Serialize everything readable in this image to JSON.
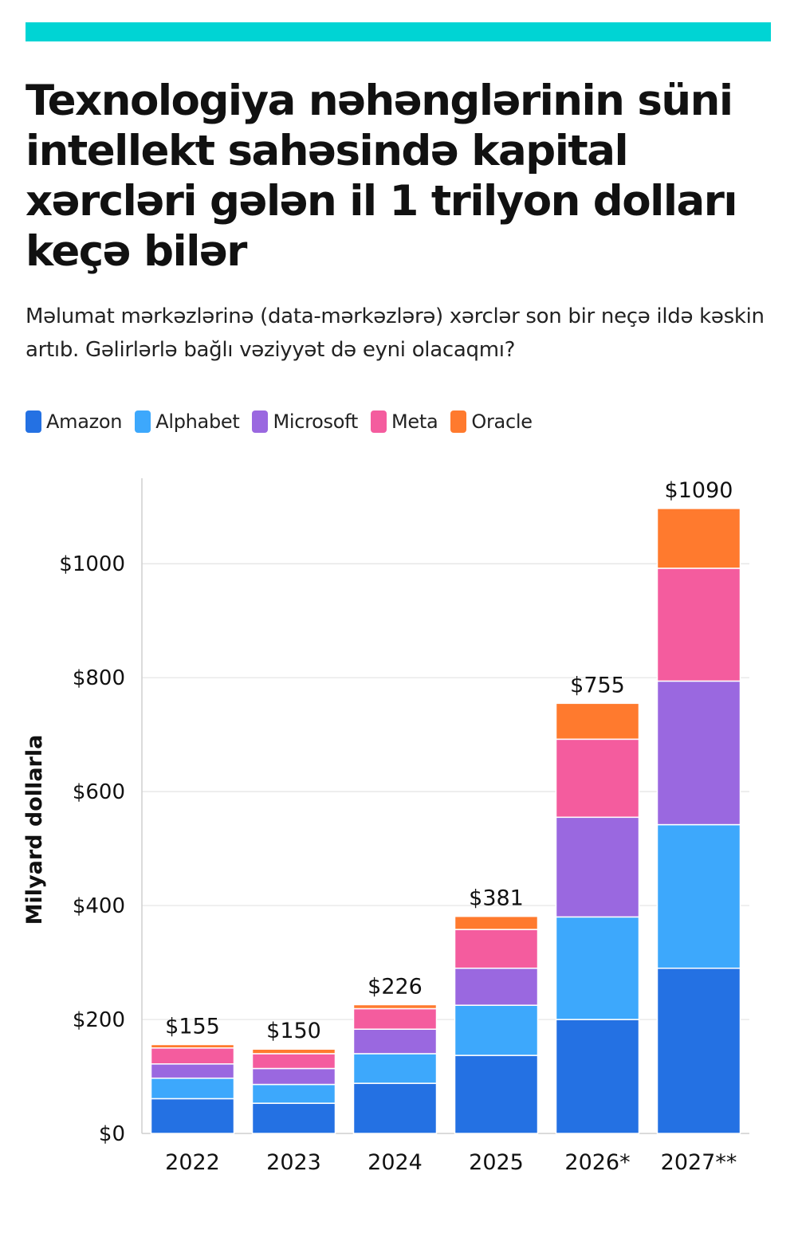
{
  "header": {
    "title": "Texnologiya nəhənglərinin süni intellekt sahəsində kapital xərcləri gələn il 1 trilyon dolları keçə bilər",
    "subtitle": "Məlumat mərkəzlərinə (data-mərkəzlərə) xərclər son bir neçə ildə kəskin artıb. Gəlirlərlə bağlı vəziyyət də eyni olacaqmı?"
  },
  "colors": {
    "accent_bar": "#00D4D4"
  },
  "chart_data": {
    "type": "bar",
    "stacked": true,
    "title": "Texnologiya nəhənglərinin süni intellekt sahəsində kapital xərcləri gələn il 1 trilyon dolları keçə bilər",
    "ylabel": "Milyard dollarla",
    "xlabel": "",
    "ylim": [
      0,
      1150
    ],
    "yticks": [
      0,
      200,
      400,
      600,
      800,
      1000
    ],
    "ytick_labels": [
      "$0",
      "$200",
      "$400",
      "$600",
      "$800",
      "$1000"
    ],
    "grid": true,
    "legend_position": "top-left",
    "categories": [
      "2022",
      "2023",
      "2024",
      "2025",
      "2026*",
      "2027**"
    ],
    "totals": [
      155,
      150,
      226,
      381,
      755,
      1090
    ],
    "total_labels": [
      "$155",
      "$150",
      "$226",
      "$381",
      "$755",
      "$1090"
    ],
    "series": [
      {
        "name": "Amazon",
        "color": "#2471E3",
        "values": [
          61,
          53,
          88,
          137,
          200,
          290
        ]
      },
      {
        "name": "Alphabet",
        "color": "#3DA8FC",
        "values": [
          36,
          33,
          52,
          88,
          180,
          252
        ]
      },
      {
        "name": "Microsoft",
        "color": "#9A68E0",
        "values": [
          25,
          28,
          43,
          65,
          175,
          252
        ]
      },
      {
        "name": "Meta",
        "color": "#F45C9E",
        "values": [
          28,
          26,
          36,
          68,
          137,
          198
        ]
      },
      {
        "name": "Oracle",
        "color": "#FF7A2E",
        "values": [
          6,
          8,
          7,
          23,
          63,
          105
        ]
      }
    ]
  }
}
